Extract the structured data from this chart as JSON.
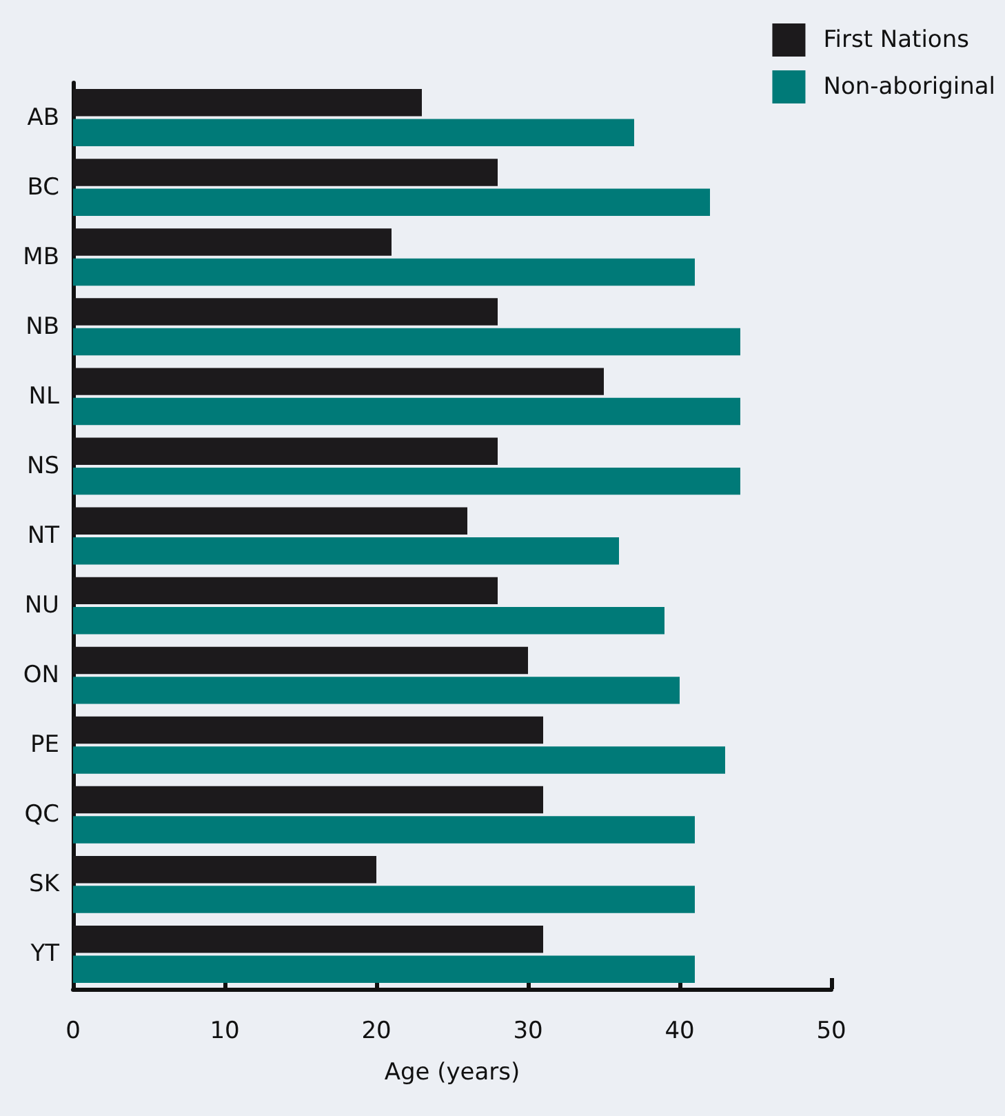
{
  "chart_data": {
    "type": "bar",
    "orientation": "horizontal",
    "xlabel": "Age (years)",
    "categories": [
      "AB",
      "BC",
      "MB",
      "NB",
      "NL",
      "NS",
      "NT",
      "NU",
      "ON",
      "PE",
      "QC",
      "SK",
      "YT"
    ],
    "series": [
      {
        "name": "First Nations",
        "color": "#1c1a1c",
        "values": [
          23,
          28,
          21,
          28,
          35,
          28,
          26,
          28,
          30,
          31,
          31,
          20,
          31
        ]
      },
      {
        "name": "Non-aboriginal",
        "color": "#007a78",
        "values": [
          37,
          42,
          41,
          44,
          44,
          44,
          36,
          39,
          40,
          43,
          41,
          41,
          41
        ]
      }
    ],
    "xlim": [
      0,
      50
    ],
    "xticks": [
      0,
      10,
      20,
      30,
      40,
      50
    ],
    "grid": false,
    "legend": "top right"
  }
}
